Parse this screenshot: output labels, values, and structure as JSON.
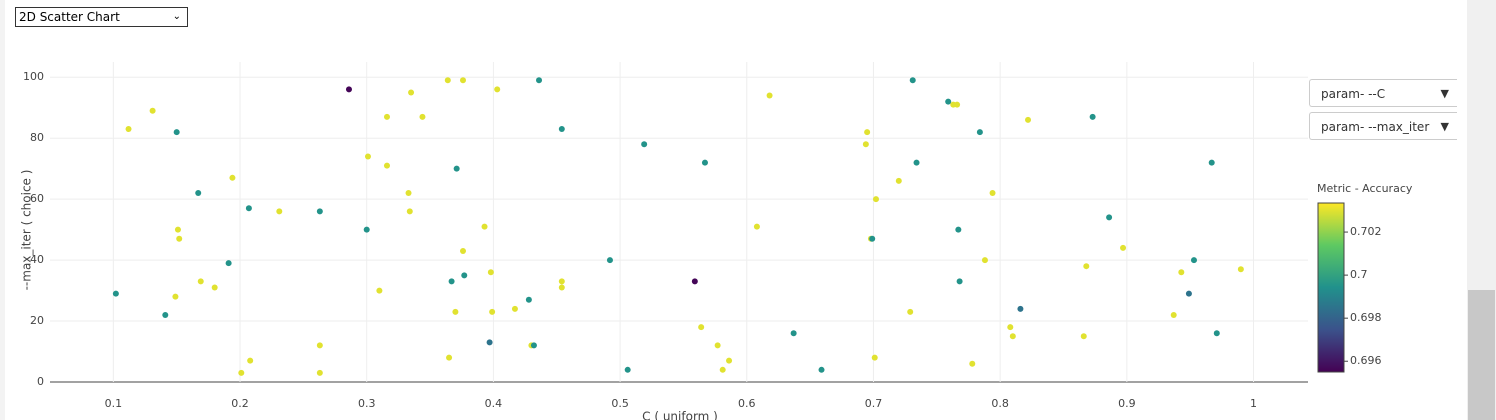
{
  "ui": {
    "view_select": "2D Scatter Chart",
    "param_selects": [
      "param- --C",
      "param- --max_iter"
    ]
  },
  "chart_data": {
    "type": "scatter",
    "xlabel": "C ( uniform )",
    "ylabel": "--max_iter ( choice )",
    "colorbar_title": "Metric - Accuracy",
    "xlim": [
      0.05,
      1.043
    ],
    "ylim": [
      0,
      105
    ],
    "xticks": [
      0.1,
      0.2,
      0.3,
      0.4,
      0.5,
      0.6,
      0.7,
      0.8,
      0.9,
      1
    ],
    "yticks": [
      0,
      20,
      40,
      60,
      80,
      100
    ],
    "clim": [
      0.6955,
      0.70335
    ],
    "cticks": [
      0.696,
      0.698,
      0.7,
      0.702
    ],
    "colorscale": [
      "#440154",
      "#3b528b",
      "#21918c",
      "#5ec962",
      "#fde725"
    ],
    "grid": true,
    "x": [
      0.112,
      0.131,
      0.15,
      0.102,
      0.141,
      0.167,
      0.151,
      0.152,
      0.149,
      0.169,
      0.18,
      0.191,
      0.194,
      0.207,
      0.201,
      0.208,
      0.231,
      0.263,
      0.263,
      0.263,
      0.286,
      0.301,
      0.3,
      0.31,
      0.316,
      0.316,
      0.335,
      0.333,
      0.334,
      0.344,
      0.364,
      0.365,
      0.367,
      0.37,
      0.371,
      0.376,
      0.376,
      0.377,
      0.393,
      0.397,
      0.398,
      0.399,
      0.403,
      0.417,
      0.428,
      0.43,
      0.432,
      0.436,
      0.454,
      0.454,
      0.454,
      0.492,
      0.506,
      0.519,
      0.559,
      0.564,
      0.567,
      0.577,
      0.581,
      0.586,
      0.608,
      0.618,
      0.637,
      0.659,
      0.695,
      0.694,
      0.698,
      0.699,
      0.702,
      0.701,
      0.72,
      0.729,
      0.731,
      0.734,
      0.759,
      0.763,
      0.766,
      0.767,
      0.768,
      0.778,
      0.784,
      0.788,
      0.794,
      0.808,
      0.81,
      0.816,
      0.822,
      0.866,
      0.868,
      0.873,
      0.886,
      0.897,
      0.937,
      0.943,
      0.949,
      0.953,
      0.967,
      0.971,
      0.99
    ],
    "y": [
      83,
      89,
      82,
      29,
      22,
      62,
      50,
      47,
      28,
      33,
      31,
      39,
      67,
      57,
      3,
      7,
      56,
      56,
      12,
      3,
      96,
      74,
      50,
      30,
      87,
      71,
      95,
      62,
      56,
      87,
      99,
      8,
      33,
      23,
      70,
      99,
      43,
      35,
      51,
      13,
      36,
      23,
      96,
      24,
      27,
      12,
      12,
      99,
      83,
      33,
      31,
      40,
      4,
      78,
      33,
      18,
      72,
      12,
      4,
      7,
      51,
      94,
      16,
      4,
      82,
      78,
      47,
      47,
      60,
      8,
      66,
      23,
      99,
      72,
      92,
      91,
      91,
      50,
      33,
      6,
      82,
      40,
      62,
      18,
      15,
      24,
      86,
      15,
      38,
      87,
      54,
      44,
      22,
      36,
      29,
      40,
      72,
      16,
      37
    ],
    "metric": [
      0.703,
      0.703,
      0.6995,
      0.6995,
      0.6995,
      0.6995,
      0.703,
      0.703,
      0.703,
      0.703,
      0.703,
      0.6995,
      0.703,
      0.6995,
      0.703,
      0.703,
      0.703,
      0.6995,
      0.703,
      0.703,
      0.6956,
      0.703,
      0.6995,
      0.703,
      0.703,
      0.703,
      0.703,
      0.703,
      0.703,
      0.703,
      0.703,
      0.703,
      0.6995,
      0.703,
      0.6995,
      0.703,
      0.703,
      0.6995,
      0.703,
      0.6985,
      0.703,
      0.703,
      0.703,
      0.703,
      0.6995,
      0.703,
      0.6995,
      0.6995,
      0.6995,
      0.703,
      0.703,
      0.6995,
      0.6995,
      0.6995,
      0.6956,
      0.703,
      0.6995,
      0.703,
      0.703,
      0.703,
      0.703,
      0.703,
      0.6995,
      0.6995,
      0.703,
      0.703,
      0.703,
      0.6995,
      0.703,
      0.703,
      0.703,
      0.703,
      0.6995,
      0.6995,
      0.6995,
      0.703,
      0.703,
      0.6995,
      0.6995,
      0.703,
      0.6995,
      0.703,
      0.703,
      0.703,
      0.703,
      0.6985,
      0.703,
      0.703,
      0.703,
      0.6995,
      0.6995,
      0.703,
      0.703,
      0.703,
      0.6985,
      0.6995,
      0.6995,
      0.6995,
      0.703
    ]
  }
}
